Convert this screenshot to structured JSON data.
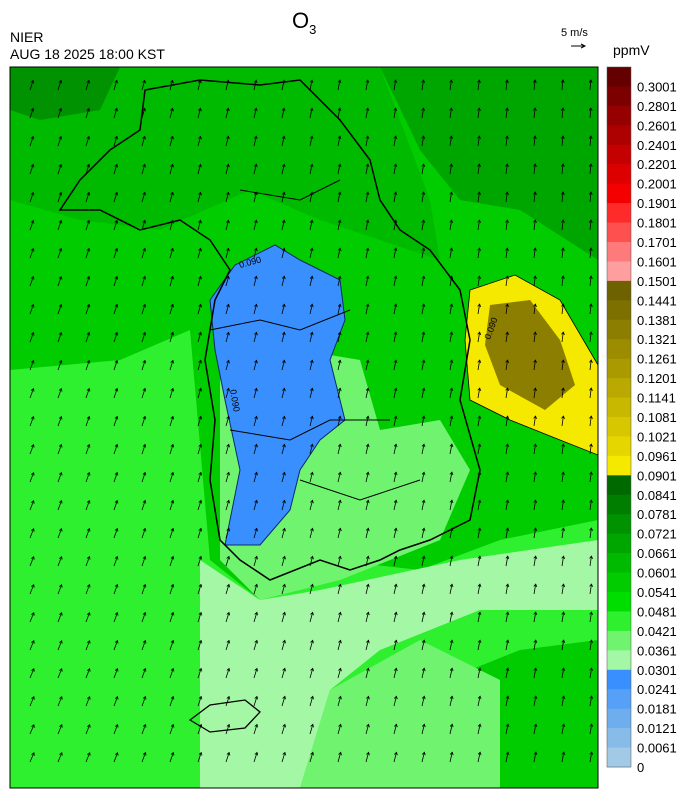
{
  "header": {
    "title": "O",
    "title_subscript": "3",
    "agency": "NIER",
    "datetime": "AUG 18 2025 18:00 KST"
  },
  "wind_legend": {
    "label": "5 m/s"
  },
  "contour_labels": [
    "0.090"
  ],
  "colorbar": {
    "unit": "ppmV",
    "labels": [
      "0.3001",
      "0.2801",
      "0.2601",
      "0.2401",
      "0.2201",
      "0.2001",
      "0.1901",
      "0.1801",
      "0.1701",
      "0.1601",
      "0.1501",
      "0.1441",
      "0.1381",
      "0.1321",
      "0.1261",
      "0.1201",
      "0.1141",
      "0.1081",
      "0.1021",
      "0.0961",
      "0.0901",
      "0.0841",
      "0.0781",
      "0.0721",
      "0.0661",
      "0.0601",
      "0.0541",
      "0.0481",
      "0.0421",
      "0.0361",
      "0.0301",
      "0.0241",
      "0.0181",
      "0.0121",
      "0.0061",
      "0"
    ],
    "colors": [
      "#650000",
      "#7d0000",
      "#950000",
      "#ad0000",
      "#c50000",
      "#dd0000",
      "#f50000",
      "#ff2a2a",
      "#ff5050",
      "#ff7a7a",
      "#ff9e9e",
      "#6e6200",
      "#7d7000",
      "#8c7e00",
      "#9b8c00",
      "#aa9a00",
      "#b9a900",
      "#c8b800",
      "#d7c700",
      "#e6d600",
      "#f5e900",
      "#006a00",
      "#007e00",
      "#009200",
      "#00a600",
      "#00ba00",
      "#00cc00",
      "#00de00",
      "#2ef02e",
      "#70f470",
      "#a4f7a4",
      "#3a8fff",
      "#56a0f7",
      "#6eaeef",
      "#88bce8",
      "#a2cae6"
    ]
  }
}
